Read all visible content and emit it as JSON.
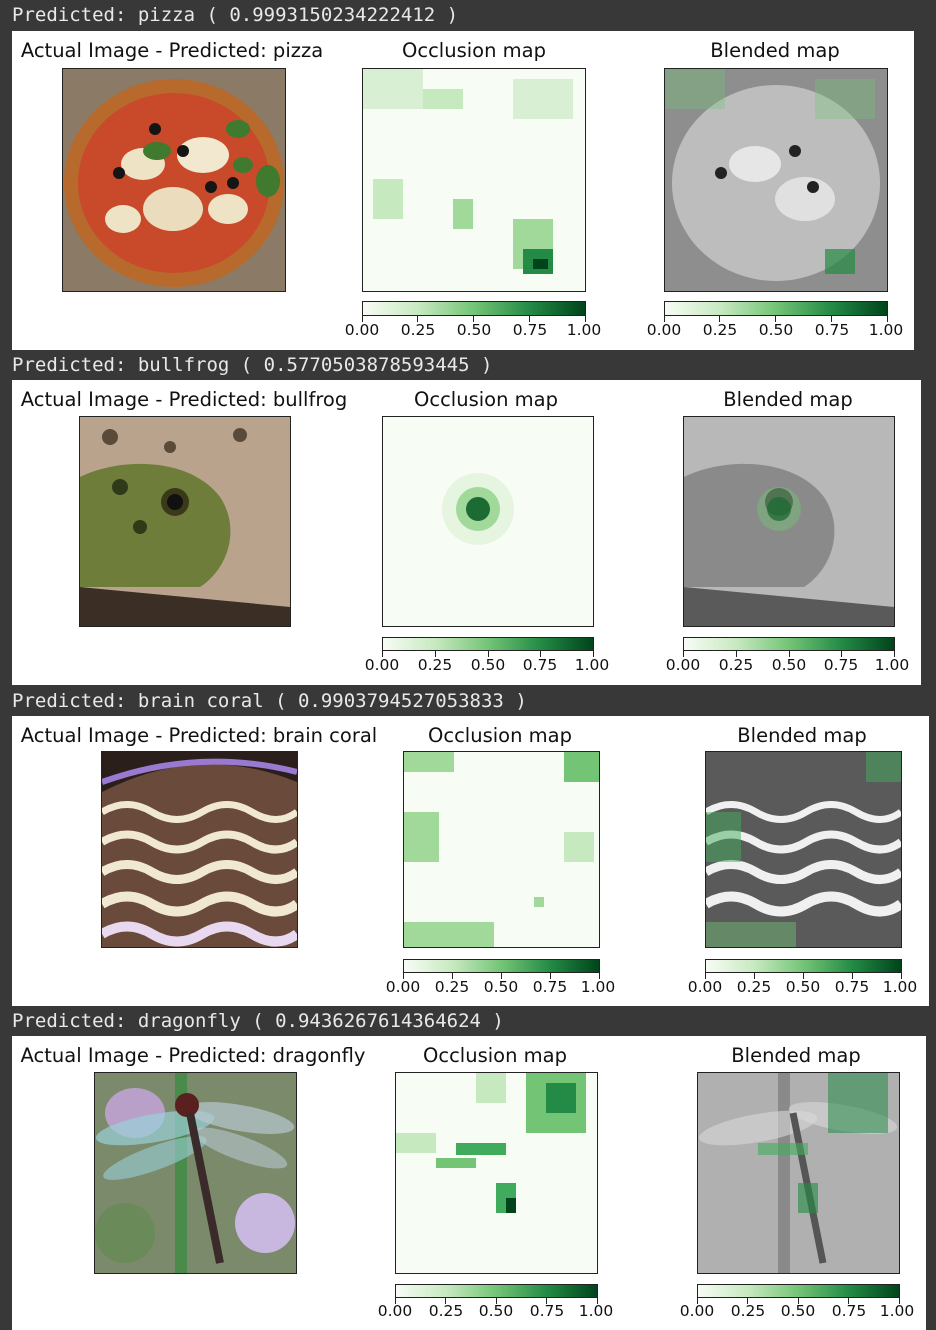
{
  "rows": [
    {
      "prediction_label": "Predicted: pizza ( 0.9993150234222412 )",
      "titles": [
        "Actual Image - Predicted: pizza",
        "Occlusion map",
        "Blended map"
      ],
      "ticks": [
        "0.00",
        "0.25",
        "0.50",
        "0.75",
        "1.00"
      ],
      "subject": "pizza"
    },
    {
      "prediction_label": "Predicted: bullfrog ( 0.5770503878593445 )",
      "titles": [
        "Actual Image - Predicted: bullfrog",
        "Occlusion map",
        "Blended map"
      ],
      "ticks": [
        "0.00",
        "0.25",
        "0.50",
        "0.75",
        "1.00"
      ],
      "subject": "bullfrog"
    },
    {
      "prediction_label": "Predicted: brain coral ( 0.9903794527053833 )",
      "titles": [
        "Actual Image - Predicted: brain coral",
        "Occlusion map",
        "Blended map"
      ],
      "ticks": [
        "0.00",
        "0.25",
        "0.50",
        "0.75",
        "1.00"
      ],
      "subject": "brain coral"
    },
    {
      "prediction_label": "Predicted: dragonfly ( 0.9436267614364624 )",
      "titles": [
        "Actual Image - Predicted: dragonfly",
        "Occlusion map",
        "Blended map"
      ],
      "ticks": [
        "0.00",
        "0.25",
        "0.50",
        "0.75",
        "1.00"
      ],
      "subject": "dragonfly"
    }
  ],
  "colors": {
    "page_bg": "#383838",
    "panel_bg": "#ffffff",
    "colormap": "Greens"
  }
}
